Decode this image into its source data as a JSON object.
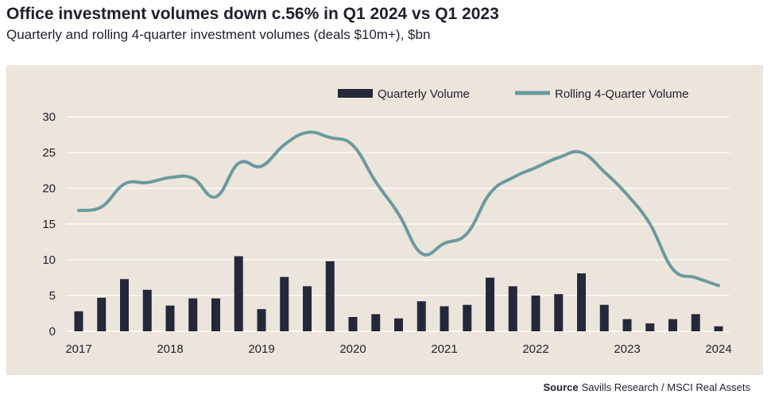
{
  "header": {
    "title": "Office investment volumes down c.56% in Q1 2024 vs Q1 2023",
    "subtitle": "Quarterly and rolling 4-quarter investment volumes (deals $10m+), $bn"
  },
  "footer": {
    "source_label": "Source",
    "source_text": "Savills Research / MSCI Real Assets"
  },
  "colors": {
    "panel_bg": "#ece5db",
    "bar": "#24283a",
    "line": "#6a9aa0",
    "grid": "#ffffff",
    "text": "#1f1f2e"
  },
  "chart_data": {
    "type": "bar",
    "title": "Office investment volumes down c.56% in Q1 2024 vs Q1 2023",
    "subtitle": "Quarterly and rolling 4-quarter investment volumes (deals $10m+), $bn",
    "categories": [
      "2017 Q1",
      "2017 Q2",
      "2017 Q3",
      "2017 Q4",
      "2018 Q1",
      "2018 Q2",
      "2018 Q3",
      "2018 Q4",
      "2019 Q1",
      "2019 Q2",
      "2019 Q3",
      "2019 Q4",
      "2020 Q1",
      "2020 Q2",
      "2020 Q3",
      "2020 Q4",
      "2021 Q1",
      "2021 Q2",
      "2021 Q3",
      "2021 Q4",
      "2022 Q1",
      "2022 Q2",
      "2022 Q3",
      "2022 Q4",
      "2023 Q1",
      "2023 Q2",
      "2023 Q3",
      "2023 Q4",
      "2024 Q1"
    ],
    "x_tick_labels": [
      "2017",
      "2018",
      "2019",
      "2020",
      "2021",
      "2022",
      "2023",
      "2024"
    ],
    "y_ticks": [
      0,
      5,
      10,
      15,
      20,
      25,
      30
    ],
    "ylim": [
      0,
      30
    ],
    "grid": true,
    "legend_position": "top-right",
    "series": [
      {
        "name": "Quarterly Volume",
        "kind": "bar",
        "values": [
          2.8,
          4.7,
          7.3,
          5.8,
          3.6,
          4.6,
          4.6,
          10.5,
          3.1,
          7.6,
          6.3,
          9.8,
          2.0,
          2.4,
          1.8,
          4.2,
          3.5,
          3.7,
          7.5,
          6.3,
          5.0,
          5.2,
          8.1,
          3.7,
          1.7,
          1.1,
          1.7,
          2.4,
          0.7
        ]
      },
      {
        "name": "Rolling 4-Quarter Volume",
        "kind": "line",
        "values": [
          16.9,
          17.4,
          20.6,
          20.8,
          21.5,
          21.4,
          18.8,
          23.5,
          23.1,
          26.1,
          27.8,
          27.1,
          26.0,
          20.9,
          16.4,
          10.9,
          12.3,
          13.7,
          19.3,
          21.5,
          22.9,
          24.3,
          25.0,
          22.3,
          19.1,
          15.0,
          8.7,
          7.5,
          6.4
        ]
      }
    ]
  }
}
